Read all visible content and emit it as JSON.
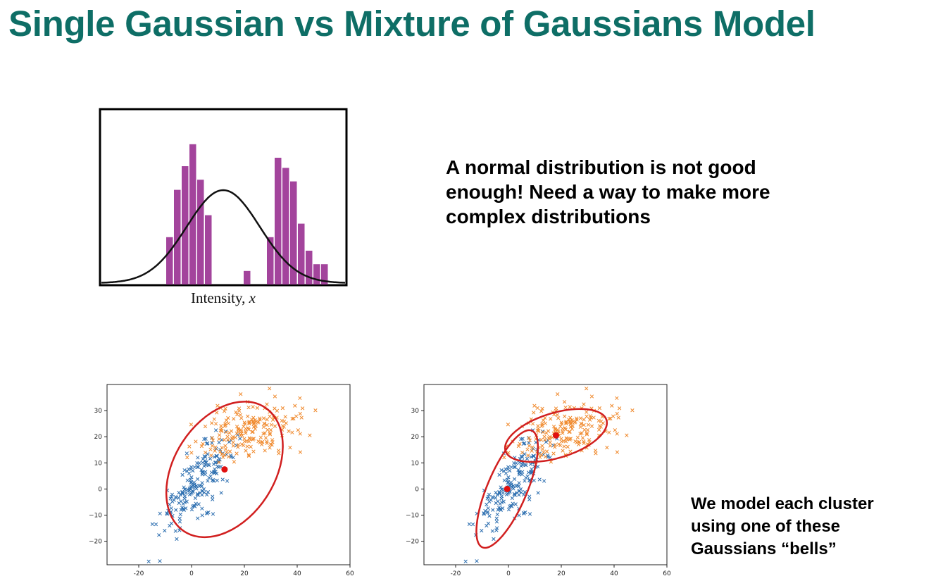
{
  "title": "Single Gaussian vs Mixture of Gaussians Model",
  "note_top": [
    "A normal distribution is not good",
    "enough!  Need a way to make more",
    "complex distributions"
  ],
  "note_bottom": [
    "We model each cluster",
    "using one of these",
    "Gaussians “bells”"
  ],
  "colors": {
    "title": "#0e6e66",
    "histogram": "#a3449c",
    "curve": "#111111",
    "cluster_blue": "#2d6fb0",
    "cluster_orange": "#f08a2e",
    "ellipse": "#d11f1f",
    "center": "#e01010"
  },
  "chart_data": [
    {
      "type": "bar",
      "subtype": "histogram_with_gaussian_fit",
      "xlabel_text": "Intensity,",
      "xlabel_var": "x",
      "bins": 26,
      "values": [
        0,
        0,
        0,
        0,
        0,
        0.28,
        0.56,
        0.7,
        0.83,
        0.62,
        0.41,
        0,
        0,
        0,
        0,
        0.08,
        0,
        0,
        0.28,
        0.75,
        0.69,
        0.61,
        0.36,
        0.2,
        0.12,
        0.12
      ],
      "curve": {
        "mean": 0.5,
        "sd": 0.15,
        "peak": 0.55
      },
      "grid": false
    },
    {
      "type": "scatter",
      "panel": "single_gaussian",
      "xlim": [
        -32,
        60
      ],
      "ylim": [
        -29,
        40
      ],
      "xticks": [
        "-20",
        "0",
        "20",
        "40",
        "60"
      ],
      "yticks": [
        "30",
        "20",
        "10",
        "0",
        "−10",
        "−20"
      ],
      "series": [
        {
          "color": "blue",
          "marker": "x",
          "center": [
            2,
            2
          ],
          "spread": [
            7,
            9
          ],
          "corr": 0.78,
          "count": 200
        },
        {
          "color": "orange",
          "marker": "x",
          "center": [
            23,
            22
          ],
          "spread": [
            10,
            6
          ],
          "corr": 0.3,
          "count": 200
        }
      ],
      "fit": [
        {
          "mean": [
            12.5,
            7.5
          ],
          "radii": [
            28,
            19
          ],
          "angle_deg": 57
        }
      ]
    },
    {
      "type": "scatter",
      "panel": "mixture_of_gaussians",
      "xlim": [
        -32,
        60
      ],
      "ylim": [
        -29,
        40
      ],
      "xticks": [
        "-20",
        "0",
        "20",
        "40",
        "60"
      ],
      "yticks": [
        "30",
        "20",
        "10",
        "0",
        "−10",
        "−20"
      ],
      "series": [
        {
          "color": "blue",
          "marker": "x",
          "center": [
            2,
            2
          ],
          "spread": [
            7,
            9
          ],
          "corr": 0.78,
          "count": 200
        },
        {
          "color": "orange",
          "marker": "x",
          "center": [
            23,
            22
          ],
          "spread": [
            10,
            6
          ],
          "corr": 0.3,
          "count": 200
        }
      ],
      "fit": [
        {
          "mean": [
            -0.5,
            0
          ],
          "radii": [
            24,
            7.5
          ],
          "angle_deg": 67
        },
        {
          "mean": [
            18,
            20.5
          ],
          "radii": [
            20,
            8.5
          ],
          "angle_deg": 17
        }
      ]
    }
  ]
}
